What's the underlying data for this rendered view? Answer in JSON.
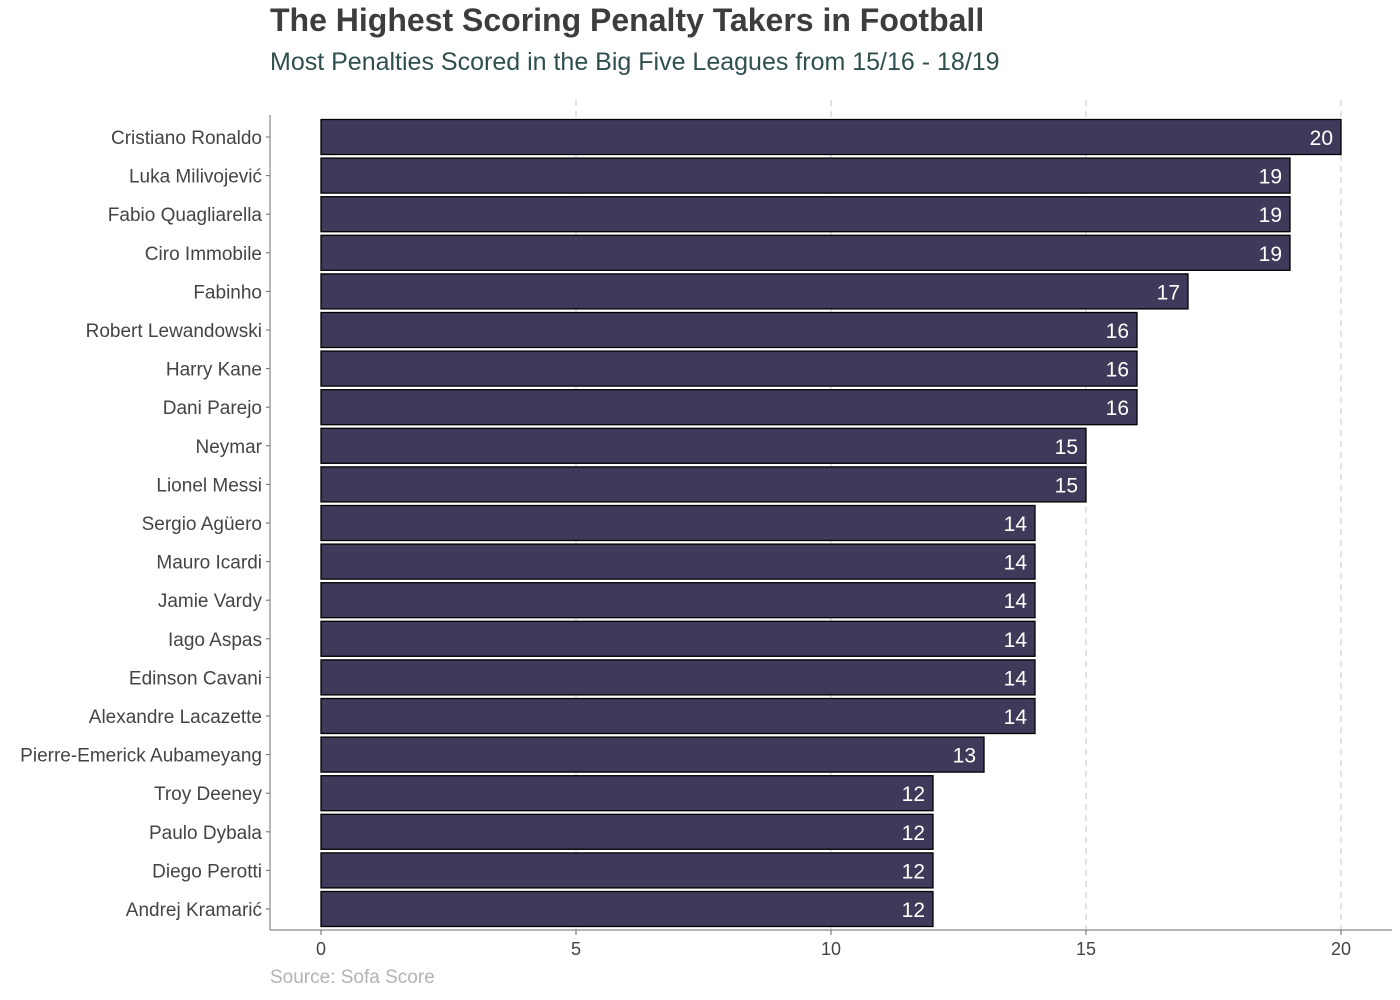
{
  "chart_data": {
    "type": "bar",
    "orientation": "horizontal",
    "title": "The Highest Scoring Penalty Takers in Football",
    "subtitle": "Most Penalties Scored in the Big Five Leagues from 15/16 - 18/19",
    "caption": "Source: Sofa Score",
    "xlabel": "",
    "ylabel": "",
    "xlim": [
      0,
      20
    ],
    "xticks": [
      0,
      5,
      10,
      15,
      20
    ],
    "grid": "vertical dashed at major ticks",
    "categories": [
      "Cristiano Ronaldo",
      "Luka Milivojević",
      "Fabio Quagliarella",
      "Ciro Immobile",
      "Fabinho",
      "Robert Lewandowski",
      "Harry Kane",
      "Dani Parejo",
      "Neymar",
      "Lionel Messi",
      "Sergio Agüero",
      "Mauro Icardi",
      "Jamie Vardy",
      "Iago Aspas",
      "Edinson Cavani",
      "Alexandre Lacazette",
      "Pierre-Emerick Aubameyang",
      "Troy Deeney",
      "Paulo Dybala",
      "Diego Perotti",
      "Andrej Kramarić"
    ],
    "values": [
      20,
      19,
      19,
      19,
      17,
      16,
      16,
      16,
      15,
      15,
      14,
      14,
      14,
      14,
      14,
      14,
      13,
      12,
      12,
      12,
      12
    ],
    "bar_color": "#3f3a5a",
    "bar_outline": "#000000",
    "value_label_color": "#ffffff"
  }
}
